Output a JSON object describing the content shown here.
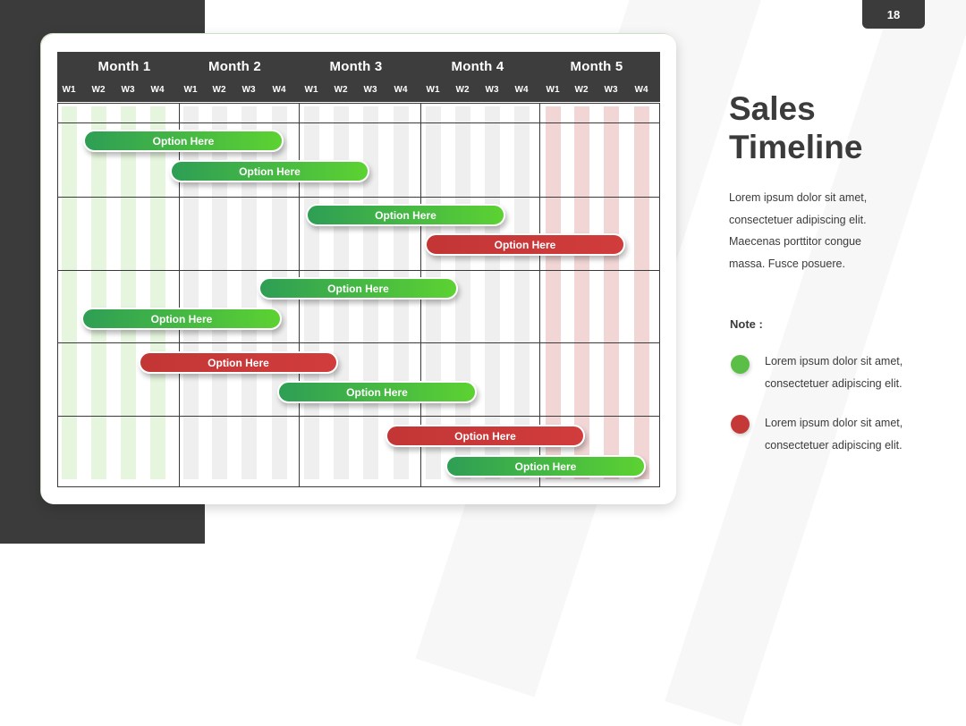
{
  "page_number": "18",
  "header": {
    "months": [
      "Month 1",
      "Month 2",
      "Month 3",
      "Month 4",
      "Month 5"
    ],
    "weeks": [
      "W1",
      "W2",
      "W3",
      "W4"
    ]
  },
  "timeline": {
    "bars": [
      {
        "label": "Option Here",
        "color": "green"
      },
      {
        "label": "Option Here",
        "color": "green"
      },
      {
        "label": "Option Here",
        "color": "green"
      },
      {
        "label": "Option Here",
        "color": "red"
      },
      {
        "label": "Option Here",
        "color": "green"
      },
      {
        "label": "Option Here",
        "color": "green"
      },
      {
        "label": "Option Here",
        "color": "red"
      },
      {
        "label": "Option Here",
        "color": "green"
      },
      {
        "label": "Option Here",
        "color": "red"
      },
      {
        "label": "Option Here",
        "color": "green"
      }
    ]
  },
  "panel": {
    "title_line1": "Sales",
    "title_line2": "Timeline",
    "description_lines": [
      "Lorem ipsum dolor sit amet,",
      "consectetuer adipiscing elit.",
      "Maecenas porttitor congue",
      "massa. Fusce posuere."
    ],
    "note_label": "Note :",
    "legend": [
      {
        "color": "#5bbf47",
        "line1": "Lorem ipsum dolor sit amet,",
        "line2": "consectetuer adipiscing elit."
      },
      {
        "color": "#c53838",
        "line1": "Lorem ipsum dolor sit amet,",
        "line2": "consectetuer adipiscing elit."
      }
    ]
  },
  "colors": {
    "dark": "#3b3b3b",
    "green_start": "#2e9e55",
    "green_end": "#5cd232",
    "red": "#c93838",
    "stripe_green": "#e6f5de",
    "stripe_gray": "#efefef",
    "stripe_red": "#f2d5d5"
  }
}
